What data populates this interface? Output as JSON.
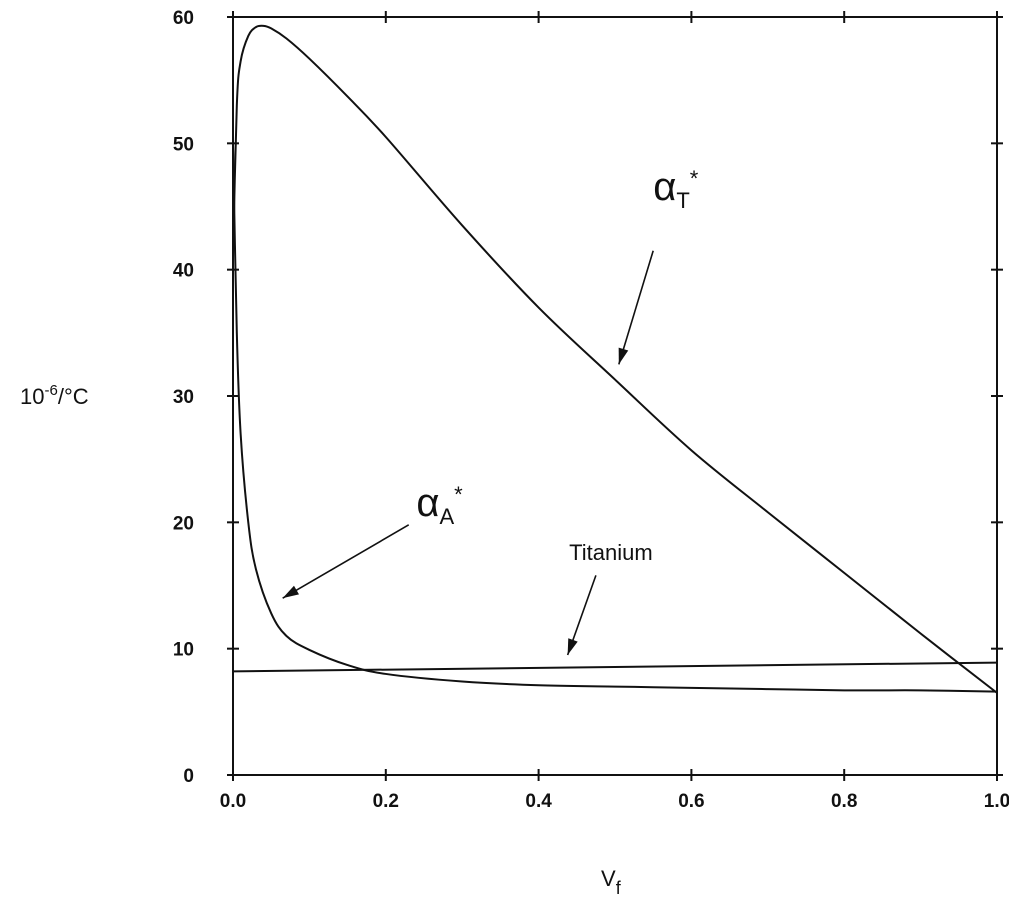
{
  "chart_data": {
    "type": "line",
    "title": "",
    "xlabel": "V",
    "xlabel_subscript": "f",
    "ylabel": "10-6/°C",
    "ylabel_base": "10",
    "ylabel_exponent": "-6",
    "ylabel_unit": "/°C",
    "xlim": [
      0.0,
      1.0
    ],
    "ylim": [
      0,
      60
    ],
    "xticks": [
      "0.0",
      "0.2",
      "0.4",
      "0.6",
      "0.8",
      "1.0"
    ],
    "yticks": [
      "0",
      "10",
      "20",
      "30",
      "40",
      "50",
      "60"
    ],
    "grid": false,
    "legend": "none",
    "series": [
      {
        "name": "αT*",
        "symbol": "α",
        "subscript": "T",
        "superscript": "*",
        "x": [
          0.0,
          0.005,
          0.01,
          0.02,
          0.03,
          0.04,
          0.05,
          0.07,
          0.1,
          0.15,
          0.2,
          0.3,
          0.4,
          0.5,
          0.6,
          0.7,
          0.8,
          0.9,
          1.0
        ],
        "y": [
          41,
          53,
          56.5,
          58.5,
          59.2,
          59.3,
          59.1,
          58.3,
          56.7,
          53.7,
          50.5,
          43.5,
          37.0,
          31.3,
          25.7,
          20.8,
          16.0,
          11.2,
          6.5
        ]
      },
      {
        "name": "αA*",
        "symbol": "α",
        "subscript": "A",
        "superscript": "*",
        "x": [
          0.0,
          0.005,
          0.01,
          0.02,
          0.03,
          0.05,
          0.07,
          0.1,
          0.15,
          0.2,
          0.3,
          0.4,
          0.5,
          0.6,
          0.7,
          0.8,
          0.9,
          1.0
        ],
        "y": [
          50,
          35,
          27,
          20,
          16.3,
          12.8,
          11.0,
          9.9,
          8.7,
          8.0,
          7.4,
          7.1,
          7.0,
          6.9,
          6.8,
          6.7,
          6.7,
          6.6
        ]
      },
      {
        "name": "Titanium",
        "x": [
          0.0,
          1.0
        ],
        "y": [
          8.2,
          8.9
        ]
      }
    ],
    "annotations": [
      {
        "text": "α",
        "subscript": "T",
        "superscript": "*",
        "label_at": [
          0.55,
          45.5
        ],
        "arrow_from": [
          0.55,
          41.5
        ],
        "arrow_to": [
          0.505,
          32.5
        ]
      },
      {
        "text": "α",
        "subscript": "A",
        "superscript": "*",
        "label_at": [
          0.24,
          20.5
        ],
        "arrow_from": [
          0.23,
          19.8
        ],
        "arrow_to": [
          0.065,
          14.0
        ]
      },
      {
        "text": "Titanium",
        "label_at": [
          0.44,
          17.0
        ],
        "arrow_from": [
          0.475,
          15.8
        ],
        "arrow_to": [
          0.438,
          9.5
        ]
      }
    ]
  }
}
